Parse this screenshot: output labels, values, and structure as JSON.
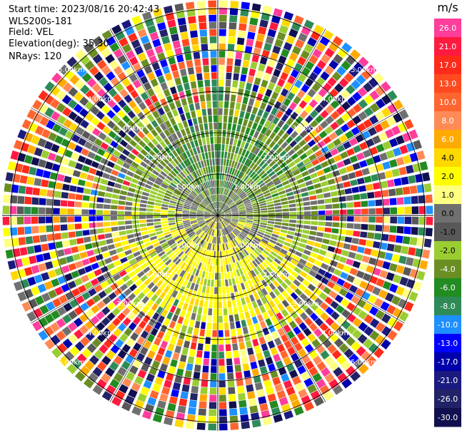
{
  "info": {
    "start_time": "Start time: 2023/08/16 20:42:43",
    "instrument": "WLS200s-181",
    "field": "Field: VEL",
    "elevation": "Elevation(deg): 35.30",
    "nrays": "NRays: 120"
  },
  "colorbar": {
    "unit": "m/s",
    "ticks": [
      "26.0",
      "21.0",
      "17.0",
      "13.0",
      "10.0",
      "8.0",
      "6.0",
      "4.0",
      "2.0",
      "1.0",
      "0.0",
      "-1.0",
      "-2.0",
      "-4.0",
      "-6.0",
      "-8.0",
      "-10.0",
      "-13.0",
      "-17.0",
      "-21.0",
      "-26.0",
      "-30.0"
    ],
    "colors": [
      "#ff3d9b",
      "#ff1a40",
      "#ff2a1a",
      "#ff4a20",
      "#ff6530",
      "#ff8a55",
      "#ffaa00",
      "#ffd800",
      "#ffff00",
      "#ffff80",
      "#707070",
      "#585858",
      "#9acd32",
      "#6b8e23",
      "#228b22",
      "#2e8b57",
      "#1e90ff",
      "#0000ff",
      "#0000aa",
      "#1a1a80",
      "#222266",
      "#101050"
    ]
  },
  "chart_data": {
    "type": "ppi",
    "field": "VEL",
    "units": "m/s",
    "nrays": 120,
    "ring_labels": [
      "1.0km",
      "2.0km",
      "3.0km",
      "4.0km",
      "5.0km"
    ],
    "ring_label_text": [
      "1.00km",
      "2.00km",
      "3.00km",
      "4.00km",
      "5.00km"
    ],
    "range_rings_km": [
      1,
      2,
      3,
      4,
      5
    ],
    "max_range_km": 5.0,
    "crosshairs": true
  }
}
